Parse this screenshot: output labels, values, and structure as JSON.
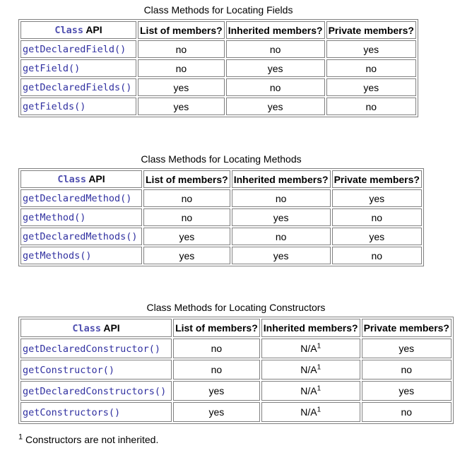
{
  "tables": [
    {
      "caption": "Class Methods for Locating Fields",
      "header": {
        "api_code": "Class",
        "api_text": " API",
        "col1": "List of members?",
        "col2": "Inherited members?",
        "col3": "Private members?"
      },
      "rows": [
        {
          "api": "getDeclaredField()",
          "c1": "no",
          "c2": "no",
          "c3": "yes"
        },
        {
          "api": "getField()",
          "c1": "no",
          "c2": "yes",
          "c3": "no"
        },
        {
          "api": "getDeclaredFields()",
          "c1": "yes",
          "c2": "no",
          "c3": "yes"
        },
        {
          "api": "getFields()",
          "c1": "yes",
          "c2": "yes",
          "c3": "no"
        }
      ]
    },
    {
      "caption": "Class Methods for Locating Methods",
      "header": {
        "api_code": "Class",
        "api_text": " API",
        "col1": "List of members?",
        "col2": "Inherited members?",
        "col3": "Private members?"
      },
      "rows": [
        {
          "api": "getDeclaredMethod()",
          "c1": "no",
          "c2": "no",
          "c3": "yes"
        },
        {
          "api": "getMethod()",
          "c1": "no",
          "c2": "yes",
          "c3": "no"
        },
        {
          "api": "getDeclaredMethods()",
          "c1": "yes",
          "c2": "no",
          "c3": "yes"
        },
        {
          "api": "getMethods()",
          "c1": "yes",
          "c2": "yes",
          "c3": "no"
        }
      ]
    },
    {
      "caption": "Class Methods for Locating Constructors",
      "header": {
        "api_code": "Class",
        "api_text": " API",
        "col1": "List of members?",
        "col2": "Inherited members?",
        "col3": "Private members?"
      },
      "rows": [
        {
          "api": "getDeclaredConstructor()",
          "c1": "no",
          "c2": "N/A",
          "c2_sup": "1",
          "c3": "yes"
        },
        {
          "api": "getConstructor()",
          "c1": "no",
          "c2": "N/A",
          "c2_sup": "1",
          "c3": "no"
        },
        {
          "api": "getDeclaredConstructors()",
          "c1": "yes",
          "c2": "N/A",
          "c2_sup": "1",
          "c3": "yes"
        },
        {
          "api": "getConstructors()",
          "c1": "yes",
          "c2": "N/A",
          "c2_sup": "1",
          "c3": "no"
        }
      ]
    }
  ],
  "footnote": {
    "marker": "1",
    "text": " Constructors are not inherited."
  }
}
